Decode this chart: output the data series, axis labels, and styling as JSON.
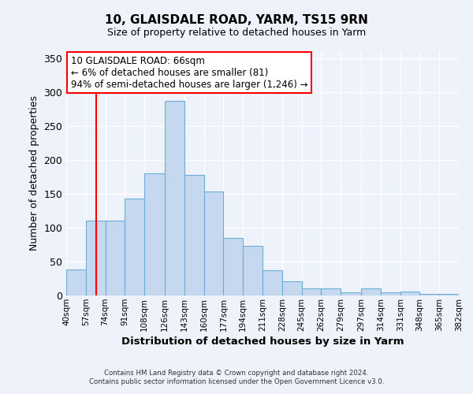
{
  "title": "10, GLAISDALE ROAD, YARM, TS15 9RN",
  "subtitle": "Size of property relative to detached houses in Yarm",
  "xlabel": "Distribution of detached houses by size in Yarm",
  "ylabel": "Number of detached properties",
  "bar_color": "#c5d8f0",
  "bar_edge_color": "#6aaed6",
  "bar_left_edges": [
    40,
    57,
    74,
    91,
    108,
    126,
    143,
    160,
    177,
    194,
    211,
    228,
    245,
    262,
    279,
    297,
    314,
    331,
    348,
    365
  ],
  "bar_widths": [
    17,
    17,
    17,
    17,
    18,
    17,
    17,
    17,
    17,
    17,
    17,
    17,
    17,
    17,
    18,
    17,
    17,
    17,
    17,
    17
  ],
  "bar_heights": [
    38,
    110,
    110,
    143,
    180,
    287,
    178,
    153,
    85,
    73,
    37,
    21,
    11,
    11,
    5,
    11,
    5,
    6,
    2,
    2
  ],
  "tick_labels": [
    "40sqm",
    "57sqm",
    "74sqm",
    "91sqm",
    "108sqm",
    "126sqm",
    "143sqm",
    "160sqm",
    "177sqm",
    "194sqm",
    "211sqm",
    "228sqm",
    "245sqm",
    "262sqm",
    "279sqm",
    "297sqm",
    "314sqm",
    "331sqm",
    "348sqm",
    "365sqm",
    "382sqm"
  ],
  "tick_positions": [
    40,
    57,
    74,
    91,
    108,
    126,
    143,
    160,
    177,
    194,
    211,
    228,
    245,
    262,
    279,
    297,
    314,
    331,
    348,
    365,
    382
  ],
  "ylim": [
    0,
    360
  ],
  "yticks": [
    0,
    50,
    100,
    150,
    200,
    250,
    300,
    350
  ],
  "xlim": [
    40,
    382
  ],
  "red_line_x": 66,
  "annotation_text": "10 GLAISDALE ROAD: 66sqm\n← 6% of detached houses are smaller (81)\n94% of semi-detached houses are larger (1,246) →",
  "annotation_box_color": "white",
  "annotation_box_edge_color": "red",
  "footer_line1": "Contains HM Land Registry data © Crown copyright and database right 2024.",
  "footer_line2": "Contains public sector information licensed under the Open Government Licence v3.0.",
  "background_color": "#eef2fa",
  "grid_color": "white",
  "fig_width": 6.0,
  "fig_height": 5.0,
  "dpi": 100
}
